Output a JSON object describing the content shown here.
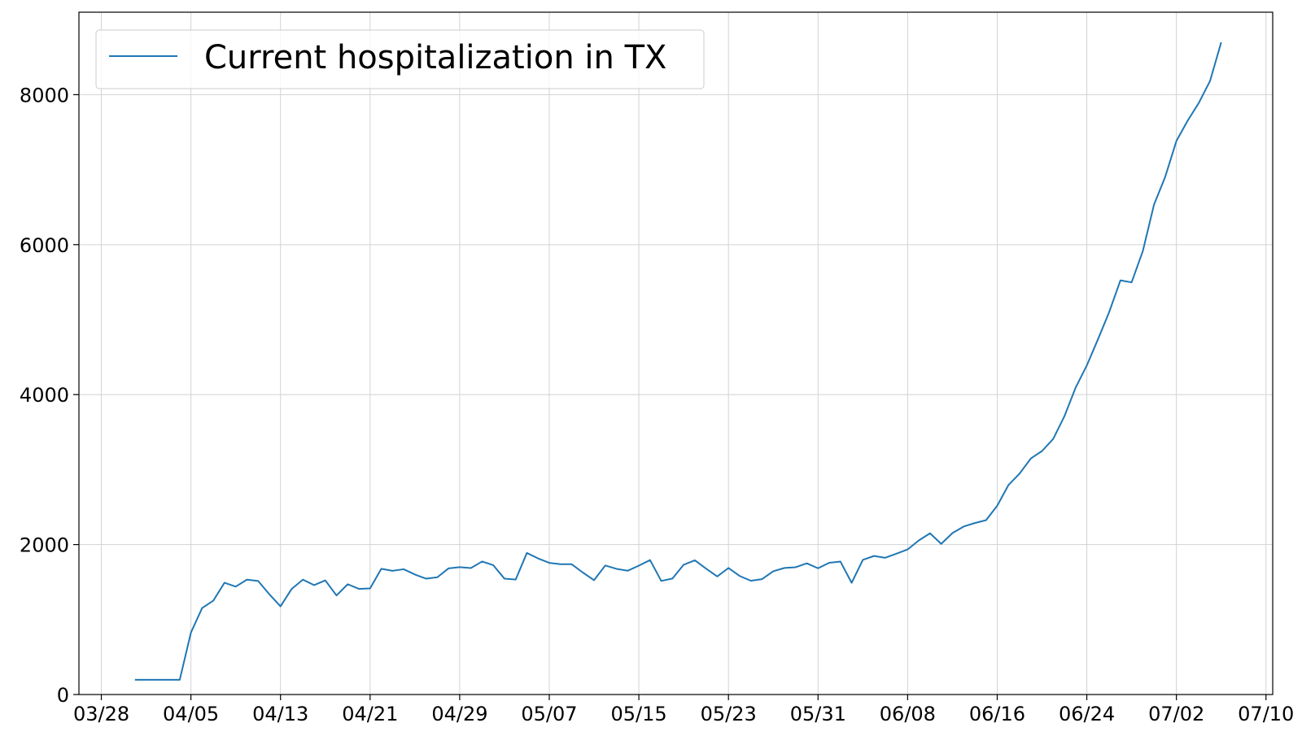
{
  "chart_data": {
    "type": "line",
    "title": "",
    "xlabel": "",
    "ylabel": "",
    "legend": {
      "position": "top-left",
      "entries": [
        "Current hospitalization in TX"
      ]
    },
    "grid": true,
    "xlim": [
      "03/26",
      "07/10"
    ],
    "ylim": [
      0,
      9100
    ],
    "x_ticks": [
      "03/28",
      "04/05",
      "04/13",
      "04/21",
      "04/29",
      "05/07",
      "05/15",
      "05/23",
      "05/31",
      "06/08",
      "06/16",
      "06/24",
      "07/02",
      "07/10"
    ],
    "y_ticks": [
      0,
      2000,
      4000,
      6000,
      8000
    ],
    "series": [
      {
        "name": "Current hospitalization in TX",
        "color": "#1f77b4",
        "start_date": "03/31",
        "values": [
          196,
          196,
          196,
          196,
          196,
          826,
          1153,
          1252,
          1491,
          1439,
          1532,
          1514,
          1338,
          1176,
          1409,
          1532,
          1459,
          1522,
          1321,
          1471,
          1409,
          1416,
          1677,
          1650,
          1671,
          1601,
          1545,
          1563,
          1682,
          1699,
          1687,
          1774,
          1725,
          1545,
          1533,
          1888,
          1815,
          1756,
          1738,
          1738,
          1627,
          1525,
          1721,
          1676,
          1651,
          1719,
          1793,
          1515,
          1547,
          1731,
          1790,
          1679,
          1575,
          1687,
          1581,
          1517,
          1539,
          1644,
          1688,
          1698,
          1750,
          1684,
          1757,
          1773,
          1490,
          1796,
          1848,
          1824,
          1878,
          1935,
          2055,
          2150,
          2009,
          2153,
          2240,
          2287,
          2325,
          2518,
          2793,
          2947,
          3148,
          3247,
          3409,
          3711,
          4092,
          4389,
          4739,
          5102,
          5523,
          5497,
          5913,
          6533,
          6904,
          7382,
          7652,
          7890,
          8181,
          8698
        ]
      }
    ]
  }
}
